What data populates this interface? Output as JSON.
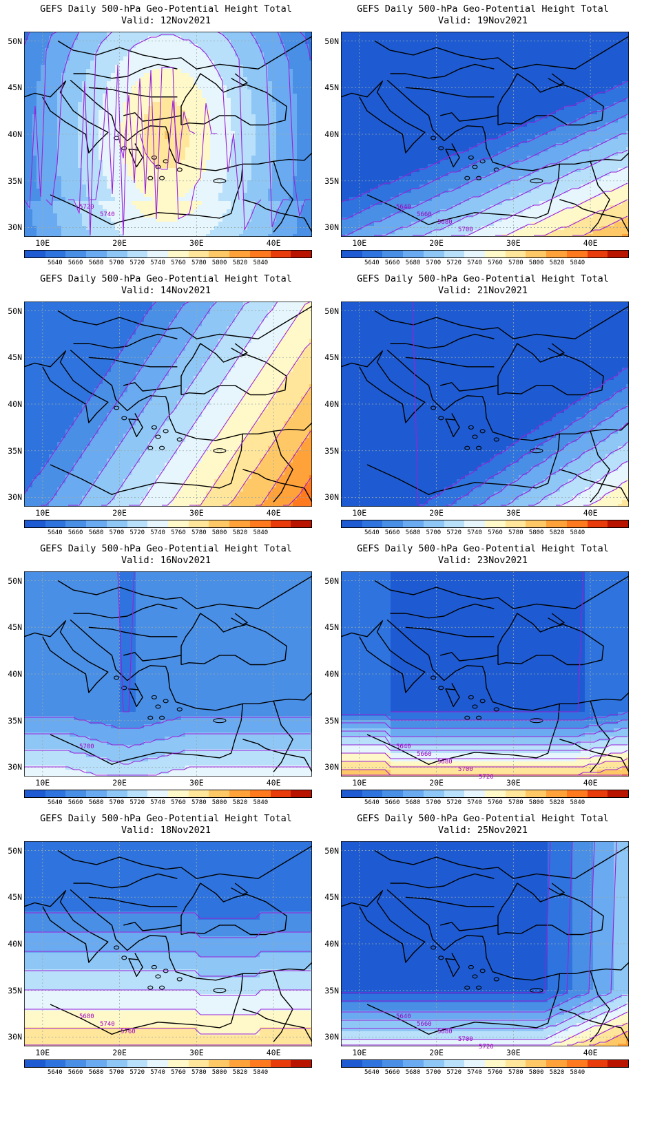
{
  "panels": [
    {
      "title": "GEFS Daily 500-hPa Geo-Potential Height Total",
      "valid": "Valid: 12Nov2021",
      "pattern": "ridge",
      "contour_labels": [
        "5720",
        "5740"
      ]
    },
    {
      "title": "GEFS Daily 500-hPa Geo-Potential Height Total",
      "valid": "Valid: 19Nov2021",
      "pattern": "south_warm_low",
      "contour_labels": [
        "5640",
        "5660",
        "5680",
        "5700"
      ]
    },
    {
      "title": "GEFS Daily 500-hPa Geo-Potential Height Total",
      "valid": "Valid: 14Nov2021",
      "pattern": "southeast_ridge",
      "contour_labels": []
    },
    {
      "title": "GEFS Daily 500-hPa Geo-Potential Height Total",
      "valid": "Valid: 21Nov2021",
      "pattern": "southeast_corner",
      "contour_labels": []
    },
    {
      "title": "GEFS Daily 500-hPa Geo-Potential Height Total",
      "valid": "Valid: 16Nov2021",
      "pattern": "trough_south",
      "contour_labels": [
        "5700"
      ]
    },
    {
      "title": "GEFS Daily 500-hPa Geo-Potential Height Total",
      "valid": "Valid: 23Nov2021",
      "pattern": "south_band",
      "contour_labels": [
        "5640",
        "5660",
        "5680",
        "5700",
        "5720"
      ]
    },
    {
      "title": "GEFS Daily 500-hPa Geo-Potential Height Total",
      "valid": "Valid: 18Nov2021",
      "pattern": "south_gradient",
      "contour_labels": [
        "5680",
        "5740",
        "5760"
      ]
    },
    {
      "title": "GEFS Daily 500-hPa Geo-Potential Height Total",
      "valid": "Valid: 25Nov2021",
      "pattern": "south_band_se",
      "contour_labels": [
        "5640",
        "5660",
        "5680",
        "5700",
        "5720"
      ]
    }
  ],
  "lat_labels": [
    "50N",
    "45N",
    "40N",
    "35N",
    "30N"
  ],
  "lon_labels": [
    "10E",
    "20E",
    "30E",
    "40E"
  ],
  "colorbar": {
    "labels": [
      "5640",
      "5660",
      "5680",
      "5700",
      "5720",
      "5740",
      "5760",
      "5780",
      "5800",
      "5820",
      "5840"
    ],
    "colors": [
      "#1e5bd2",
      "#2f74de",
      "#4a8fe6",
      "#6aaaf0",
      "#8ec6f6",
      "#b8e0fa",
      "#e6f6fc",
      "#fff8c8",
      "#ffe69a",
      "#ffc866",
      "#ffa23a",
      "#ff7a1e",
      "#e83c0c",
      "#b81400"
    ]
  }
}
